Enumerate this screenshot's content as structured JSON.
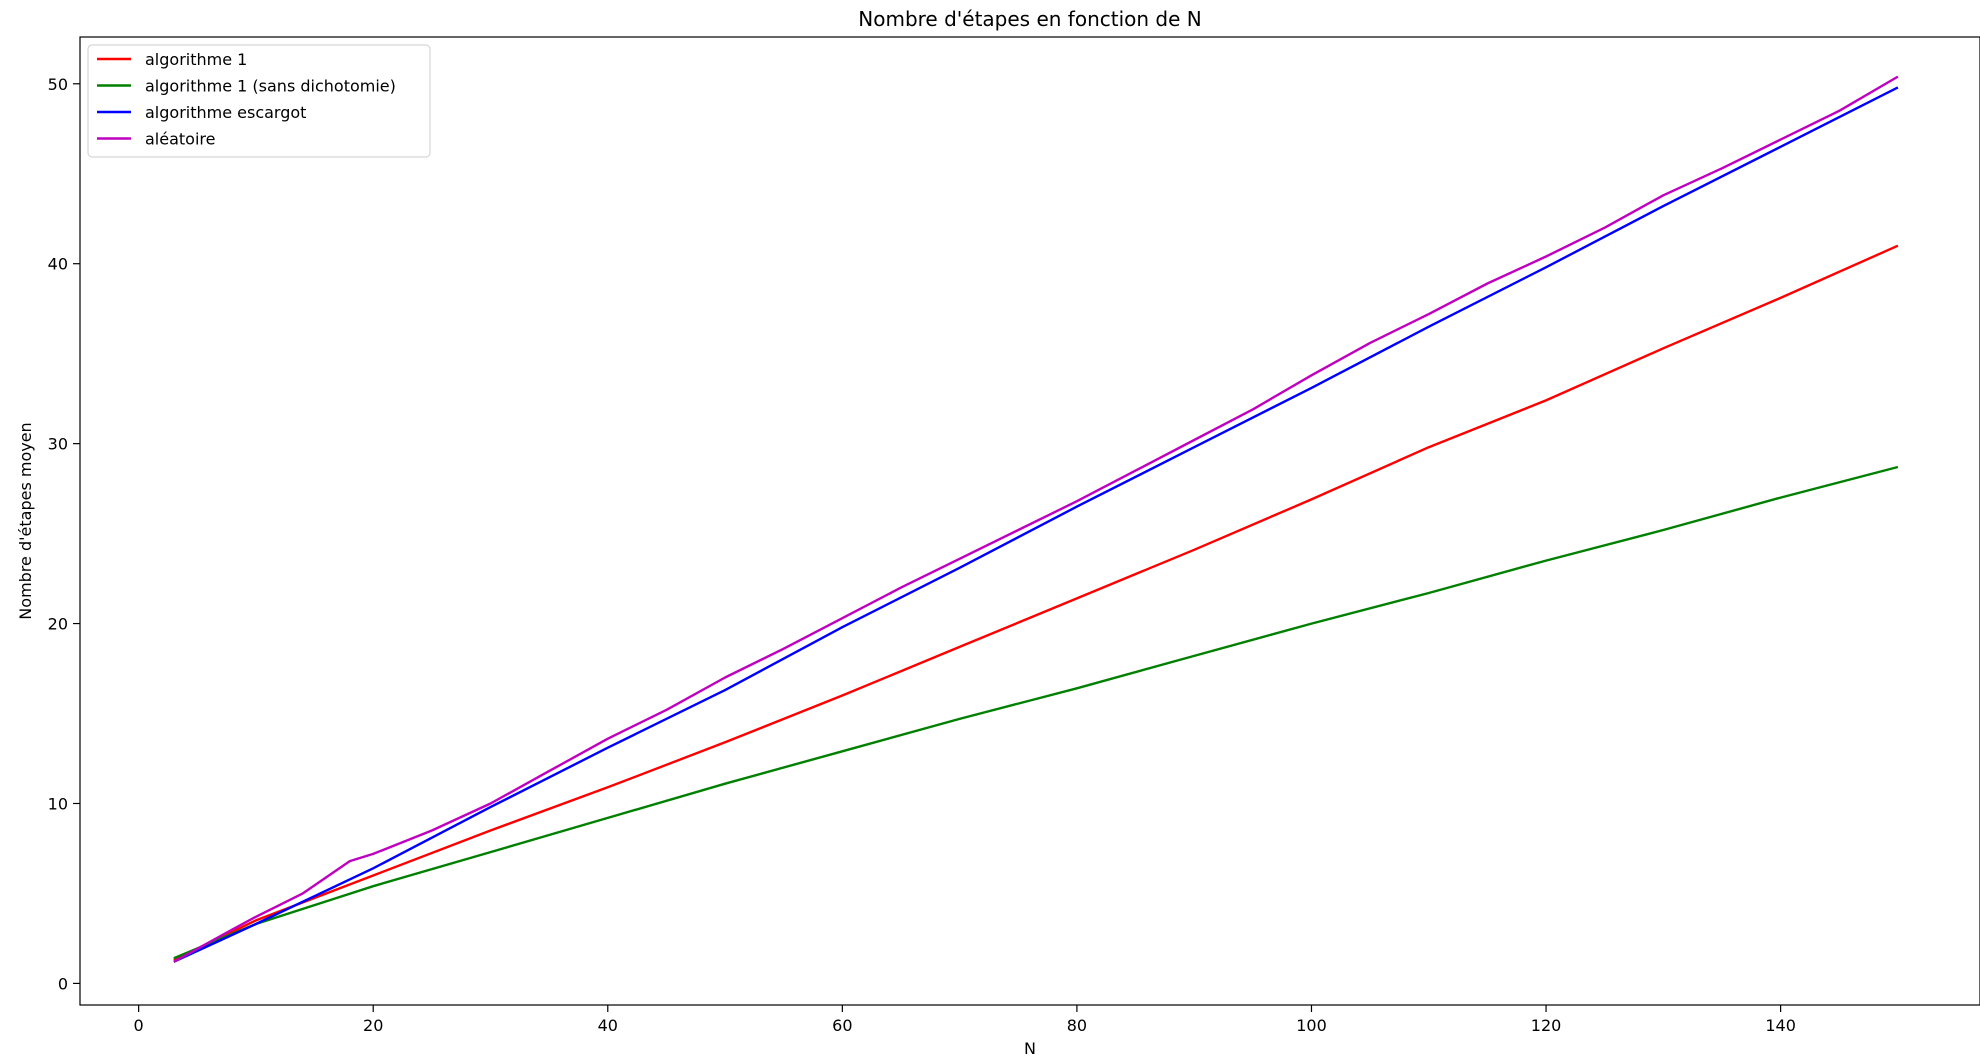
{
  "chart_data": {
    "type": "line",
    "title": "Nombre d'étapes en fonction de N",
    "xlabel": "N",
    "ylabel": "Nombre d'étapes moyen",
    "xlim": [
      -5,
      157
    ],
    "ylim": [
      -1.2,
      52.6
    ],
    "xticks": [
      0,
      20,
      40,
      60,
      80,
      100,
      120,
      140
    ],
    "yticks": [
      0,
      10,
      20,
      30,
      40,
      50
    ],
    "grid": false,
    "legend_position": "upper-left",
    "series": [
      {
        "name": "algorithme 1",
        "color": "#ff0000",
        "x": [
          3,
          10,
          20,
          30,
          40,
          50,
          60,
          70,
          80,
          90,
          100,
          110,
          120,
          130,
          140,
          150
        ],
        "y": [
          1.3,
          3.5,
          6.0,
          8.5,
          10.9,
          13.4,
          16.0,
          18.7,
          21.4,
          24.1,
          26.9,
          29.8,
          32.4,
          35.3,
          38.1,
          41.0
        ]
      },
      {
        "name": "algorithme 1 (sans dichotomie)",
        "color": "#008000",
        "x": [
          3,
          10,
          20,
          30,
          40,
          50,
          60,
          70,
          80,
          90,
          100,
          110,
          120,
          130,
          140,
          150
        ],
        "y": [
          1.4,
          3.3,
          5.4,
          7.3,
          9.2,
          11.1,
          12.9,
          14.7,
          16.4,
          18.2,
          20.0,
          21.7,
          23.5,
          25.2,
          27.0,
          28.7
        ]
      },
      {
        "name": "algorithme escargot",
        "color": "#0000ff",
        "x": [
          3,
          10,
          20,
          30,
          40,
          50,
          60,
          70,
          80,
          90,
          100,
          110,
          120,
          130,
          140,
          150
        ],
        "y": [
          1.2,
          3.3,
          6.4,
          9.8,
          13.1,
          16.3,
          19.8,
          23.1,
          26.5,
          29.8,
          33.1,
          36.5,
          39.8,
          43.2,
          46.5,
          49.8
        ]
      },
      {
        "name": "aléatoire",
        "color": "#bf00bf",
        "x": [
          3,
          8,
          10,
          14,
          18,
          20,
          25,
          30,
          35,
          40,
          45,
          50,
          55,
          60,
          65,
          70,
          75,
          80,
          85,
          90,
          95,
          100,
          105,
          110,
          115,
          120,
          125,
          130,
          135,
          140,
          145,
          150
        ],
        "y": [
          1.2,
          3.0,
          3.7,
          5.0,
          6.8,
          7.2,
          8.5,
          10.0,
          11.8,
          13.6,
          15.2,
          17.0,
          18.6,
          20.3,
          22.0,
          23.6,
          25.2,
          26.8,
          28.5,
          30.2,
          31.9,
          33.8,
          35.6,
          37.2,
          38.9,
          40.4,
          42.0,
          43.8,
          45.3,
          46.9,
          48.5,
          50.4
        ]
      }
    ]
  }
}
